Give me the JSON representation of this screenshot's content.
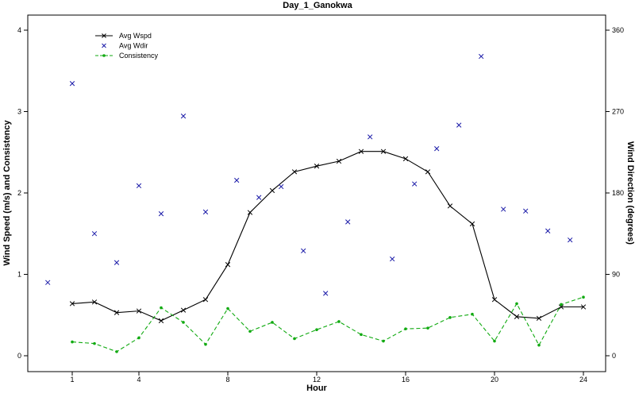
{
  "chart_data": {
    "type": "line",
    "title": "Day_1_Ganokwa",
    "xlabel": "Hour",
    "ylabel_left": "Wind Speed (m/s) and Consistency",
    "ylabel_right": "Wind Direction (degrees)",
    "xlim": [
      -1,
      25
    ],
    "ylim_left": [
      0,
      4.1
    ],
    "ylim_right": [
      0,
      369
    ],
    "xticks": [
      1,
      4,
      8,
      12,
      16,
      20,
      24
    ],
    "xtick_labels": [
      "1",
      "4",
      "8",
      "12",
      "16",
      "20",
      "24"
    ],
    "yticks_left": [
      0,
      1,
      2,
      3,
      4
    ],
    "ytick_labels_left": [
      "0",
      "1",
      "2",
      "3",
      "4"
    ],
    "yticks_right": [
      0,
      90,
      180,
      270,
      360
    ],
    "ytick_labels_right": [
      "0",
      "90",
      "180",
      "270",
      "360"
    ],
    "legend_position": "top-left",
    "series": [
      {
        "name": "Avg Wspd",
        "axis": "left",
        "style": "line-x",
        "color": "#000000",
        "points": [
          [
            1,
            0.64
          ],
          [
            2,
            0.66
          ],
          [
            3,
            0.53
          ],
          [
            4,
            0.55
          ],
          [
            5,
            0.43
          ],
          [
            6,
            0.56
          ],
          [
            7,
            0.69
          ],
          [
            8,
            1.12
          ],
          [
            9,
            1.76
          ],
          [
            10,
            2.03
          ],
          [
            11,
            2.26
          ],
          [
            12,
            2.33
          ],
          [
            13,
            2.39
          ],
          [
            14,
            2.51
          ],
          [
            15,
            2.51
          ],
          [
            16,
            2.42
          ],
          [
            17,
            2.26
          ],
          [
            18,
            1.84
          ],
          [
            19,
            1.62
          ],
          [
            20,
            0.69
          ],
          [
            21,
            0.48
          ],
          [
            22,
            0.46
          ],
          [
            23,
            0.6
          ],
          [
            24,
            0.6
          ]
        ]
      },
      {
        "name": "Avg Wdir",
        "axis": "right",
        "style": "points-x",
        "color": "#1a1aa8",
        "points": [
          [
            -0.1,
            81
          ],
          [
            1,
            301
          ],
          [
            2,
            135
          ],
          [
            3,
            103
          ],
          [
            4,
            188
          ],
          [
            5,
            157
          ],
          [
            6,
            265
          ],
          [
            7,
            159
          ],
          [
            8.4,
            194
          ],
          [
            9.4,
            175
          ],
          [
            10.4,
            187
          ],
          [
            11.4,
            116
          ],
          [
            12.4,
            69
          ],
          [
            13.4,
            148
          ],
          [
            14.4,
            242
          ],
          [
            15.4,
            107
          ],
          [
            16.4,
            190
          ],
          [
            17.4,
            229
          ],
          [
            18.4,
            255
          ],
          [
            19.4,
            331
          ],
          [
            20.4,
            162
          ],
          [
            21.4,
            160
          ],
          [
            22.4,
            138
          ],
          [
            23.4,
            128
          ]
        ]
      },
      {
        "name": "Consistency",
        "axis": "left",
        "style": "dashed-dot",
        "color": "#11aa11",
        "points": [
          [
            1,
            0.17
          ],
          [
            2,
            0.15
          ],
          [
            3,
            0.05
          ],
          [
            4,
            0.22
          ],
          [
            5,
            0.59
          ],
          [
            6,
            0.41
          ],
          [
            7,
            0.14
          ],
          [
            8,
            0.58
          ],
          [
            9,
            0.3
          ],
          [
            10,
            0.41
          ],
          [
            11,
            0.21
          ],
          [
            12,
            0.32
          ],
          [
            13,
            0.42
          ],
          [
            14,
            0.26
          ],
          [
            15,
            0.18
          ],
          [
            16,
            0.33
          ],
          [
            17,
            0.34
          ],
          [
            18,
            0.47
          ],
          [
            19,
            0.51
          ],
          [
            20,
            0.18
          ],
          [
            21,
            0.64
          ],
          [
            22,
            0.13
          ],
          [
            23,
            0.63
          ],
          [
            24,
            0.72
          ]
        ]
      }
    ]
  }
}
